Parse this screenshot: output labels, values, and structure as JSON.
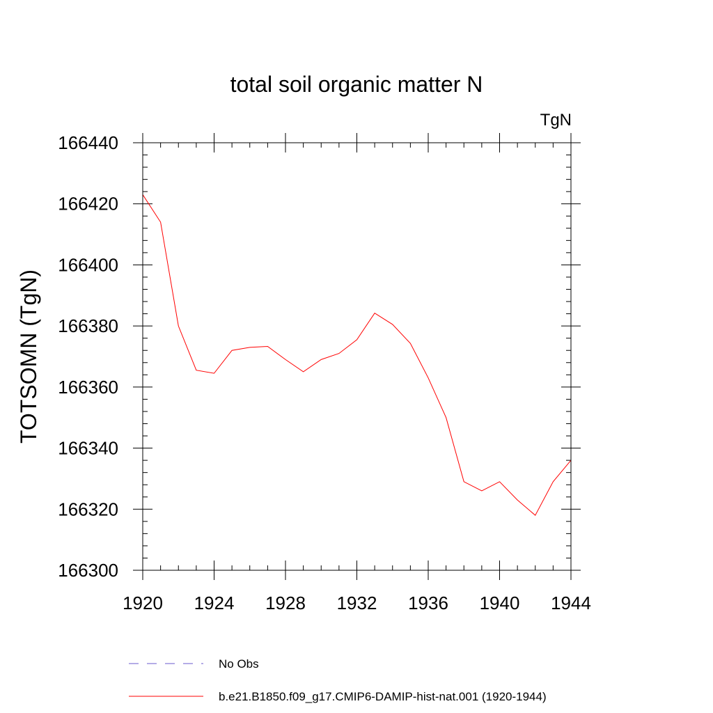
{
  "chart_data": {
    "type": "line",
    "title": "total soil organic matter N",
    "units_label": "TgN",
    "ylabel": "TOTSOMN  (TgN)",
    "xlabel": "",
    "xlim": [
      1920,
      1944
    ],
    "ylim": [
      166300,
      166440
    ],
    "x_ticks": [
      1920,
      1924,
      1928,
      1932,
      1936,
      1940,
      1944
    ],
    "y_ticks": [
      166300,
      166320,
      166340,
      166360,
      166380,
      166400,
      166420,
      166440
    ],
    "grid": false,
    "legend_position": "bottom",
    "series": [
      {
        "name": "No Obs",
        "color": "#6a5acd",
        "dash": "dashed",
        "x": [],
        "values": []
      },
      {
        "name": "b.e21.B1850.f09_g17.CMIP6-DAMIP-hist-nat.001 (1920-1944)",
        "color": "#ff0000",
        "dash": "solid",
        "x": [
          1920,
          1921,
          1922,
          1923,
          1924,
          1925,
          1926,
          1927,
          1928,
          1929,
          1930,
          1931,
          1932,
          1933,
          1934,
          1935,
          1936,
          1937,
          1938,
          1939,
          1940,
          1941,
          1942,
          1943,
          1944
        ],
        "values": [
          166423,
          166414,
          166380,
          166365.5,
          166364.5,
          166372,
          166373,
          166373.3,
          166369,
          166365,
          166369,
          166371,
          166375.5,
          166384.2,
          166380.5,
          166374.3,
          166363,
          166350,
          166329,
          166326,
          166329,
          166323,
          166318,
          166329,
          166336
        ]
      }
    ]
  }
}
